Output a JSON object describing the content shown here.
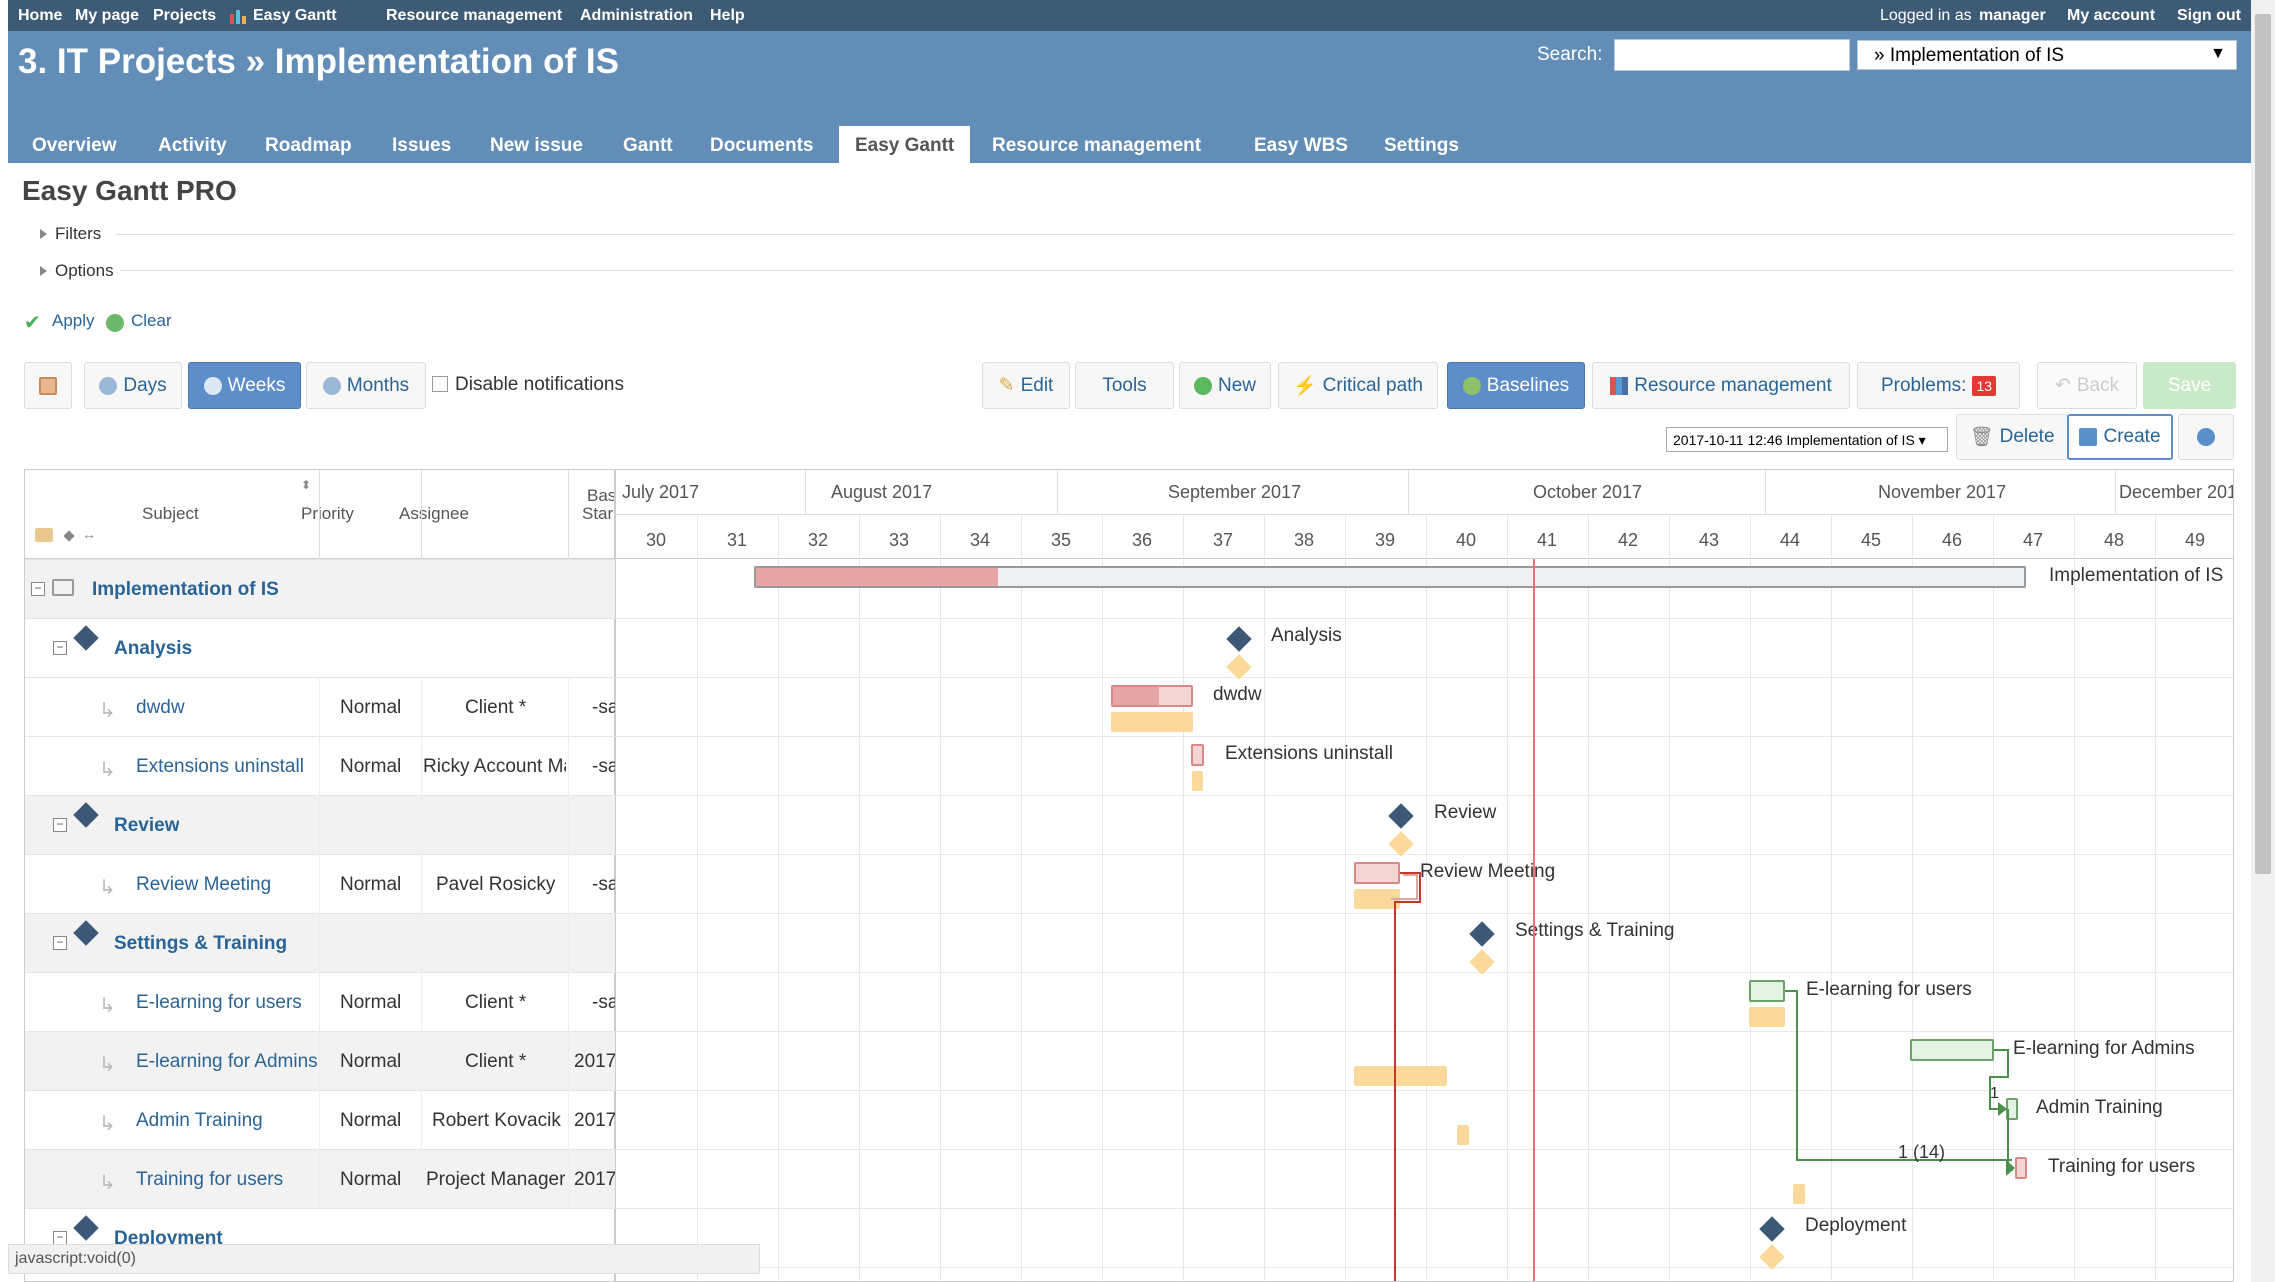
{
  "topnav": {
    "left": [
      "Home",
      "My page",
      "Projects",
      "Easy Gantt",
      "Resource management",
      "Administration",
      "Help"
    ],
    "logged_prefix": "Logged in as",
    "user": "manager",
    "my_account": "My account",
    "sign_out": "Sign out"
  },
  "header": {
    "title": "3. IT Projects » Implementation of IS",
    "search_label": "Search:",
    "search_value": "",
    "project_jump": "» Implementation of IS"
  },
  "tabs": [
    "Overview",
    "Activity",
    "Roadmap",
    "Issues",
    "New issue",
    "Gantt",
    "Documents",
    "Easy Gantt",
    "Resource management",
    "Easy WBS",
    "Settings"
  ],
  "selected_tab": "Easy Gantt",
  "page": {
    "title": "Easy Gantt PRO",
    "filters": "Filters",
    "options": "Options",
    "apply": "Apply",
    "clear": "Clear"
  },
  "toolbar": {
    "days": "Days",
    "weeks": "Weeks",
    "months": "Months",
    "disable_notifications": "Disable notifications",
    "edit": "Edit",
    "tools": "Tools",
    "new": "New",
    "critical_path": "Critical path",
    "baselines": "Baselines",
    "resource_management": "Resource management",
    "problems": "Problems:",
    "problems_count": "13",
    "back": "Back",
    "save": "Save"
  },
  "baseline": {
    "selected": "2017-10-11 12:46 Implementation of IS",
    "delete": "Delete",
    "create": "Create"
  },
  "columns": {
    "subject": "Subject",
    "priority": "Priority",
    "assignee": "Assignee",
    "baseline_start_1": "Bas",
    "baseline_start_2": "Star"
  },
  "months": [
    "July 2017",
    "August 2017",
    "September 2017",
    "October 2017",
    "November 2017",
    "December 201"
  ],
  "weeks": [
    "30",
    "31",
    "32",
    "33",
    "34",
    "35",
    "36",
    "37",
    "38",
    "39",
    "40",
    "41",
    "42",
    "43",
    "44",
    "45",
    "46",
    "47",
    "48",
    "49"
  ],
  "rows": [
    {
      "subject": "Implementation of IS",
      "priority": "",
      "assignee": "",
      "start": ""
    },
    {
      "subject": "Analysis",
      "priority": "",
      "assignee": "",
      "start": ""
    },
    {
      "subject": "dwdw",
      "priority": "Normal",
      "assignee": "Client *",
      "start": "-sa"
    },
    {
      "subject": "Extensions uninstall",
      "priority": "Normal",
      "assignee": "Ricky Account Ma",
      "start": "-sa"
    },
    {
      "subject": "Review",
      "priority": "",
      "assignee": "",
      "start": ""
    },
    {
      "subject": "Review Meeting",
      "priority": "Normal",
      "assignee": "Pavel Rosicky",
      "start": "-sa"
    },
    {
      "subject": "Settings & Training",
      "priority": "",
      "assignee": "",
      "start": ""
    },
    {
      "subject": "E-learning for users",
      "priority": "Normal",
      "assignee": "Client *",
      "start": "-sa"
    },
    {
      "subject": "E-learning for Admins",
      "priority": "Normal",
      "assignee": "Client *",
      "start": "2017"
    },
    {
      "subject": "Admin Training",
      "priority": "Normal",
      "assignee": "Robert Kovacik",
      "start": "2017"
    },
    {
      "subject": "Training for users",
      "priority": "Normal",
      "assignee": "Project Manager",
      "start": "2017"
    },
    {
      "subject": "Deployment",
      "priority": "",
      "assignee": "",
      "start": ""
    }
  ],
  "gantt_labels": {
    "project": "Implementation of IS",
    "analysis": "Analysis",
    "dwdw": "dwdw",
    "ext": "Extensions uninstall",
    "review": "Review",
    "review_meeting": "Review Meeting",
    "settings": "Settings & Training",
    "elearn_users": "E-learning for users",
    "elearn_admins": "E-learning for Admins",
    "admin_training": "Admin Training",
    "training_users": "Training for users",
    "deployment": "Deployment",
    "rel_1": "1",
    "rel_2": "1 (14)"
  },
  "status_bar": "javascript:void(0)"
}
